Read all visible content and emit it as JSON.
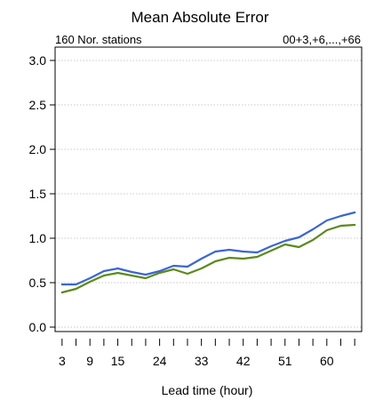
{
  "chart_data": {
    "type": "line",
    "title": "Mean Absolute Error",
    "subtitle_left": "160 Nor. stations",
    "subtitle_right": "00+3,+6,...,+66",
    "xlabel": "Lead time (hour)",
    "ylabel": "",
    "x": [
      3,
      6,
      9,
      12,
      15,
      18,
      21,
      24,
      27,
      30,
      33,
      36,
      39,
      42,
      45,
      48,
      51,
      54,
      57,
      60,
      63,
      66
    ],
    "x_tick_labels": [
      "3",
      "9",
      "15",
      "24",
      "33",
      "42",
      "51",
      "60"
    ],
    "y_ticks": [
      "0.0",
      "0.5",
      "1.0",
      "1.5",
      "2.0",
      "2.5",
      "3.0"
    ],
    "xlim": [
      1.5,
      67.5
    ],
    "ylim": [
      -0.05,
      3.15
    ],
    "grid": true,
    "series": [
      {
        "color": "#3a66d4",
        "values": [
          0.48,
          0.48,
          0.55,
          0.63,
          0.66,
          0.62,
          0.59,
          0.63,
          0.69,
          0.68,
          0.77,
          0.85,
          0.87,
          0.85,
          0.84,
          0.91,
          0.97,
          1.01,
          1.1,
          1.2,
          1.25,
          1.29
        ]
      },
      {
        "color": "#5b8a1a",
        "values": [
          0.39,
          0.43,
          0.51,
          0.58,
          0.61,
          0.58,
          0.55,
          0.61,
          0.65,
          0.6,
          0.66,
          0.74,
          0.78,
          0.77,
          0.79,
          0.86,
          0.93,
          0.9,
          0.98,
          1.09,
          1.14,
          1.15
        ]
      }
    ]
  }
}
